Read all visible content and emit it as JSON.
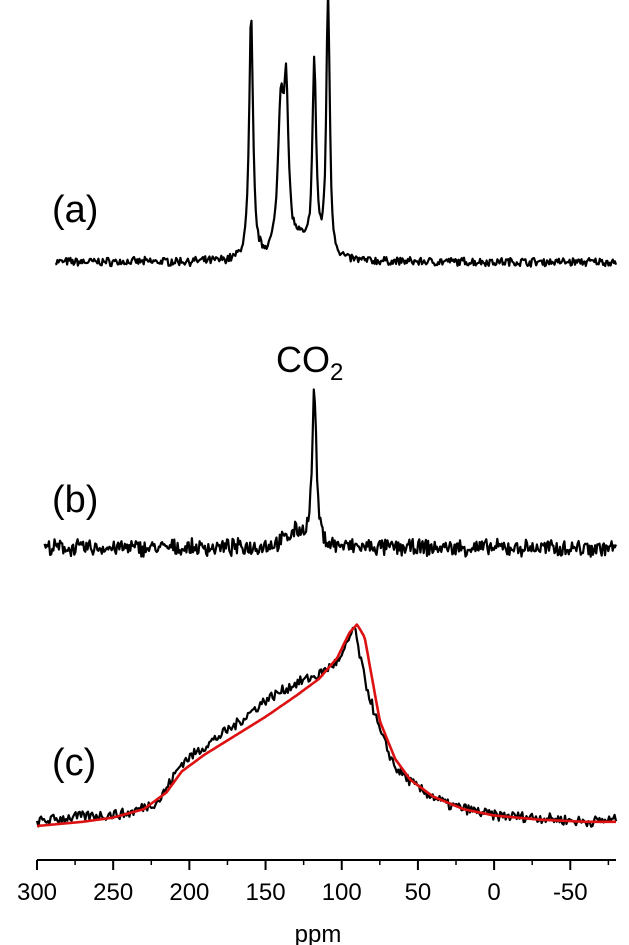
{
  "chart_data": {
    "type": "line",
    "xlabel": "ppm",
    "xlim": [
      300,
      -80
    ],
    "x_ticks": [
      "300",
      "250",
      "200",
      "150",
      "100",
      "50",
      "0",
      "-50"
    ],
    "x_tick_values": [
      300,
      250,
      200,
      150,
      100,
      50,
      0,
      -50
    ],
    "grid": false,
    "legend": "none",
    "panels": [
      {
        "label": "(a)",
        "annotation": "",
        "series": [
          {
            "color": "#000000",
            "noise": 0.04,
            "peaks": [
              {
                "center": 159.5,
                "height": 0.96,
                "width": 1.5
              },
              {
                "center": 140.0,
                "height": 0.56,
                "width": 2.2
              },
              {
                "center": 136.5,
                "height": 0.58,
                "width": 1.8
              },
              {
                "center": 128.0,
                "height": 0.06,
                "width": 6
              },
              {
                "center": 118.0,
                "height": 0.75,
                "width": 1.5
              },
              {
                "center": 109.0,
                "height": 1.05,
                "width": 1.3
              }
            ]
          }
        ]
      },
      {
        "label": "(b)",
        "annotation_main": "CO",
        "annotation_sub": "2",
        "series": [
          {
            "color": "#000000",
            "noise": 0.13,
            "peaks": [
              {
                "center": 118.0,
                "height": 1.0,
                "width": 1.6
              },
              {
                "center": 130.0,
                "height": 0.1,
                "width": 8
              }
            ]
          }
        ]
      },
      {
        "label": "(c)",
        "series": [
          {
            "name": "",
            "color": "#000000",
            "style": "measured",
            "points": [
              [
                300,
                0.02
              ],
              [
                280,
                0.04
              ],
              [
                260,
                0.05
              ],
              [
                240,
                0.06
              ],
              [
                220,
                0.12
              ],
              [
                205,
                0.3
              ],
              [
                190,
                0.38
              ],
              [
                170,
                0.48
              ],
              [
                150,
                0.6
              ],
              [
                130,
                0.68
              ],
              [
                115,
                0.72
              ],
              [
                100,
                0.8
              ],
              [
                92,
                0.95
              ],
              [
                85,
                0.7
              ],
              [
                75,
                0.45
              ],
              [
                65,
                0.28
              ],
              [
                50,
                0.18
              ],
              [
                30,
                0.1
              ],
              [
                0,
                0.05
              ],
              [
                -30,
                0.04
              ],
              [
                -60,
                0.02
              ],
              [
                -80,
                0.03
              ]
            ]
          },
          {
            "name": "",
            "color": "#dd1111",
            "style": "fit",
            "points": [
              [
                300,
                0.0
              ],
              [
                270,
                0.02
              ],
              [
                250,
                0.04
              ],
              [
                230,
                0.08
              ],
              [
                215,
                0.16
              ],
              [
                205,
                0.26
              ],
              [
                190,
                0.34
              ],
              [
                170,
                0.43
              ],
              [
                150,
                0.52
              ],
              [
                130,
                0.62
              ],
              [
                115,
                0.7
              ],
              [
                103,
                0.8
              ],
              [
                95,
                0.92
              ],
              [
                90,
                0.96
              ],
              [
                85,
                0.9
              ],
              [
                80,
                0.7
              ],
              [
                75,
                0.5
              ],
              [
                65,
                0.32
              ],
              [
                55,
                0.22
              ],
              [
                40,
                0.14
              ],
              [
                20,
                0.08
              ],
              [
                0,
                0.05
              ],
              [
                -30,
                0.03
              ],
              [
                -60,
                0.02
              ],
              [
                -80,
                0.02
              ]
            ]
          }
        ]
      }
    ]
  }
}
